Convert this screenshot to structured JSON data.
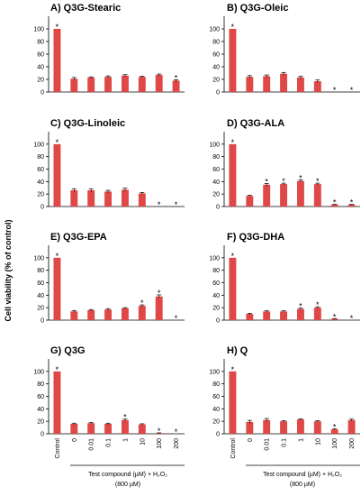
{
  "figure": {
    "ylabel": "Cell viability (% of control)",
    "xlabel_line1": "Test compound (µM) + H₂O₂",
    "xlabel_line2": "(800 µM)",
    "categories": [
      "Control",
      "0",
      "0.01",
      "0.1",
      "1",
      "10",
      "100",
      "200"
    ],
    "bar_color": "#e04848"
  },
  "chart_data": [
    {
      "type": "bar",
      "title": "A) Q3G-Stearic",
      "ylim": [
        0,
        120
      ],
      "yticks": [
        0,
        20,
        40,
        60,
        80,
        100
      ],
      "values": [
        100,
        21,
        23,
        24,
        26,
        24,
        27,
        18
      ],
      "errors": [
        0,
        2,
        1,
        1.5,
        1.5,
        1,
        1.5,
        1.5
      ],
      "significant": [
        true,
        false,
        false,
        false,
        false,
        false,
        false,
        true
      ]
    },
    {
      "type": "bar",
      "title": "B) Q3G-Oleic",
      "ylim": [
        0,
        120
      ],
      "yticks": [
        0,
        20,
        40,
        60,
        80,
        100
      ],
      "values": [
        100,
        24,
        25,
        29,
        23,
        17,
        0,
        0
      ],
      "errors": [
        0,
        2,
        2,
        2,
        2,
        2,
        0,
        0
      ],
      "significant": [
        true,
        false,
        false,
        false,
        false,
        false,
        true,
        true
      ]
    },
    {
      "type": "bar",
      "title": "C) Q3G-Linoleic",
      "ylim": [
        0,
        120
      ],
      "yticks": [
        0,
        20,
        40,
        60,
        80,
        100
      ],
      "values": [
        100,
        26,
        26,
        24,
        27,
        21,
        0,
        0
      ],
      "errors": [
        0,
        2.5,
        2.5,
        2,
        2.5,
        1.5,
        0,
        0
      ],
      "significant": [
        true,
        false,
        false,
        false,
        false,
        false,
        true,
        true
      ]
    },
    {
      "type": "bar",
      "title": "D) Q3G-ALA",
      "ylim": [
        0,
        120
      ],
      "yticks": [
        0,
        20,
        40,
        60,
        80,
        100
      ],
      "values": [
        100,
        17,
        35,
        36,
        41,
        36,
        3,
        3
      ],
      "errors": [
        0,
        1,
        2,
        1.5,
        2,
        1.5,
        0.5,
        0.5
      ],
      "significant": [
        true,
        false,
        true,
        true,
        true,
        true,
        true,
        true
      ]
    },
    {
      "type": "bar",
      "title": "E) Q3G-EPA",
      "ylim": [
        0,
        120
      ],
      "yticks": [
        0,
        20,
        40,
        60,
        80,
        100
      ],
      "values": [
        100,
        14,
        16,
        17,
        19,
        23,
        38,
        0
      ],
      "errors": [
        0,
        1.5,
        1,
        1.5,
        1,
        1.5,
        2.5,
        0
      ],
      "significant": [
        true,
        false,
        false,
        false,
        false,
        true,
        true,
        true
      ]
    },
    {
      "type": "bar",
      "title": "F) Q3G-DHA",
      "ylim": [
        0,
        120
      ],
      "yticks": [
        0,
        20,
        40,
        60,
        80,
        100
      ],
      "values": [
        100,
        10,
        14,
        14,
        18,
        20,
        2,
        0
      ],
      "errors": [
        0,
        1,
        1,
        1,
        1.5,
        1.5,
        0.5,
        0
      ],
      "significant": [
        true,
        false,
        false,
        false,
        true,
        true,
        true,
        true
      ]
    },
    {
      "type": "bar",
      "title": "G) Q3G",
      "ylim": [
        0,
        120
      ],
      "yticks": [
        0,
        20,
        40,
        60,
        80,
        100
      ],
      "values": [
        100,
        16,
        17,
        16,
        22,
        15,
        1,
        0
      ],
      "errors": [
        0,
        1,
        1,
        1,
        1.5,
        1,
        0.5,
        0
      ],
      "significant": [
        true,
        false,
        false,
        false,
        true,
        false,
        true,
        true
      ]
    },
    {
      "type": "bar",
      "title": "H) Q",
      "ylim": [
        0,
        120
      ],
      "yticks": [
        0,
        20,
        40,
        60,
        80,
        100
      ],
      "values": [
        100,
        19,
        22,
        20,
        23,
        20,
        7,
        22
      ],
      "errors": [
        0,
        2.5,
        2.5,
        1,
        1,
        1,
        1,
        1.5
      ],
      "significant": [
        true,
        false,
        false,
        false,
        false,
        false,
        true,
        false
      ]
    }
  ]
}
